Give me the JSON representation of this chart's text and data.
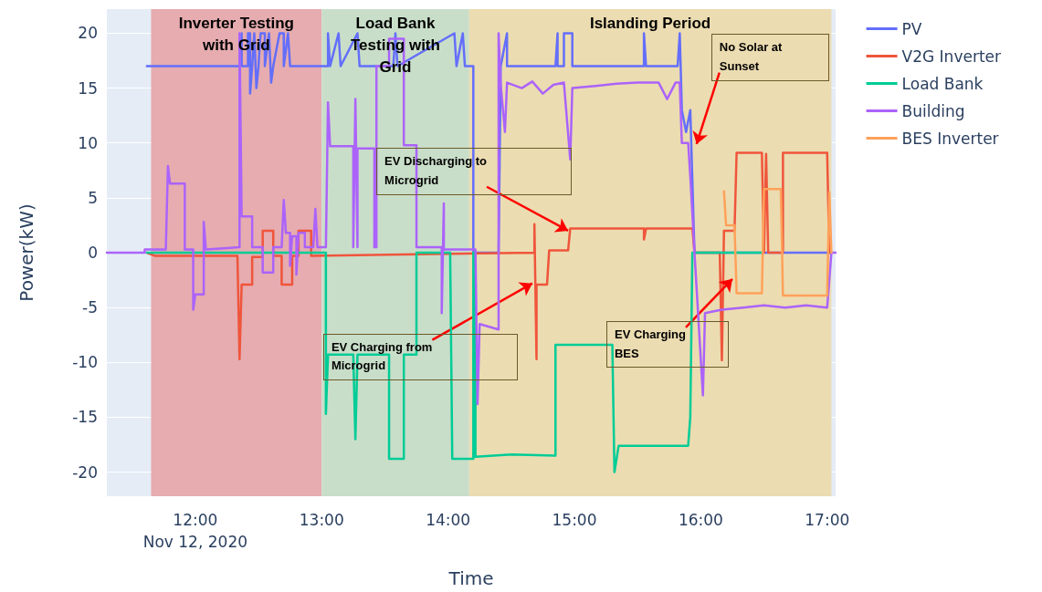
{
  "chart_data": {
    "type": "line",
    "xlabel": "Time",
    "ylabel": "Power(kW)",
    "xlim": [
      "2020-11-12T11:18",
      "2020-11-12T17:04"
    ],
    "ylim": [
      -22.2,
      22.2
    ],
    "xticks": [
      {
        "value": "2020-11-12T12:00",
        "label": "12:00\nNov 12, 2020"
      },
      {
        "value": "2020-11-12T13:00",
        "label": "13:00"
      },
      {
        "value": "2020-11-12T14:00",
        "label": "14:00"
      },
      {
        "value": "2020-11-12T15:00",
        "label": "15:00"
      },
      {
        "value": "2020-11-12T16:00",
        "label": "16:00"
      },
      {
        "value": "2020-11-12T17:00",
        "label": "17:00"
      }
    ],
    "yticks": [
      -20,
      -15,
      -10,
      -5,
      0,
      5,
      10,
      15,
      20
    ],
    "grid": true,
    "legend": "top right",
    "marker": "none",
    "line_style": "solid",
    "series": [
      {
        "name": "PV",
        "color": "#636efa",
        "x": [
          "2020-11-12T11:37",
          "2020-11-12T12:21",
          "2020-11-12T12:22",
          "2020-11-12T12:22",
          "2020-11-12T12:25",
          "2020-11-12T12:25",
          "2020-11-12T12:26",
          "2020-11-12T12:26",
          "2020-11-12T12:27",
          "2020-11-12T12:28",
          "2020-11-12T12:29",
          "2020-11-12T12:30",
          "2020-11-12T12:31",
          "2020-11-12T12:33",
          "2020-11-12T12:33",
          "2020-11-12T12:35",
          "2020-11-12T12:36",
          "2020-11-12T12:37",
          "2020-11-12T12:40",
          "2020-11-12T12:42",
          "2020-11-12T12:42",
          "2020-11-12T12:44",
          "2020-11-12T12:45",
          "2020-11-12T13:03",
          "2020-11-12T13:03",
          "2020-11-12T13:04",
          "2020-11-12T13:08",
          "2020-11-12T13:09",
          "2020-11-12T13:17",
          "2020-11-12T13:18",
          "2020-11-12T13:34",
          "2020-11-12T13:35",
          "2020-11-12T13:36",
          "2020-11-12T14:03",
          "2020-11-12T14:04",
          "2020-11-12T14:07",
          "2020-11-12T14:08",
          "2020-11-12T14:12",
          "2020-11-12T14:12",
          "2020-11-12T14:24",
          "2020-11-12T14:25",
          "2020-11-12T14:28",
          "2020-11-12T14:28",
          "2020-11-12T14:51",
          "2020-11-12T14:52",
          "2020-11-12T14:52",
          "2020-11-12T14:55",
          "2020-11-12T14:55",
          "2020-11-12T14:59",
          "2020-11-12T14:59",
          "2020-11-12T15:33",
          "2020-11-12T15:33",
          "2020-11-12T15:34",
          "2020-11-12T15:49",
          "2020-11-12T15:50",
          "2020-11-12T15:51",
          "2020-11-12T15:53",
          "2020-11-12T15:55",
          "2020-11-12T15:57",
          "2020-11-12T17:02"
        ],
        "values": [
          17,
          17,
          20,
          17,
          17,
          20,
          20,
          14.5,
          17,
          20,
          15,
          17,
          20,
          20,
          17,
          20,
          15.5,
          17,
          20,
          20,
          17,
          20,
          17,
          17,
          20,
          17,
          20,
          17,
          20,
          17,
          17,
          20,
          17,
          20,
          17,
          20,
          17,
          17,
          0,
          0,
          17,
          20,
          17,
          17,
          20,
          17,
          17,
          20,
          20,
          17,
          17,
          20,
          17,
          17,
          20,
          13,
          11,
          13,
          0,
          0
        ]
      },
      {
        "name": "V2G Inverter",
        "color": "#ef553b",
        "x": [
          "2020-11-12T11:37",
          "2020-11-12T11:41",
          "2020-11-12T12:20",
          "2020-11-12T12:21",
          "2020-11-12T12:22",
          "2020-11-12T12:27",
          "2020-11-12T12:27",
          "2020-11-12T12:32",
          "2020-11-12T12:32",
          "2020-11-12T12:37",
          "2020-11-12T12:37",
          "2020-11-12T12:41",
          "2020-11-12T12:41",
          "2020-11-12T12:46",
          "2020-11-12T12:46",
          "2020-11-12T12:49",
          "2020-11-12T12:49",
          "2020-11-12T12:55",
          "2020-11-12T12:55",
          "2020-11-12T14:00",
          "2020-11-12T14:41",
          "2020-11-12T14:41",
          "2020-11-12T14:42",
          "2020-11-12T14:42",
          "2020-11-12T14:47",
          "2020-11-12T14:48",
          "2020-11-12T14:57",
          "2020-11-12T14:58",
          "2020-11-12T15:33",
          "2020-11-12T15:33",
          "2020-11-12T15:34",
          "2020-11-12T15:56",
          "2020-11-12T15:57",
          "2020-11-12T16:09",
          "2020-11-12T16:10",
          "2020-11-12T16:11",
          "2020-11-12T16:16",
          "2020-11-12T16:17",
          "2020-11-12T16:29",
          "2020-11-12T16:30",
          "2020-11-12T16:31",
          "2020-11-12T16:32",
          "2020-11-12T16:39",
          "2020-11-12T16:39",
          "2020-11-12T17:00",
          "2020-11-12T17:01",
          "2020-11-12T17:02"
        ],
        "values": [
          0,
          -0.3,
          -0.3,
          -9.7,
          -2.9,
          -2.9,
          -0.4,
          -0.4,
          2,
          2,
          -0.3,
          -0.3,
          -2.9,
          -2.9,
          -0.3,
          -0.3,
          2,
          2,
          -0.3,
          -0.1,
          0,
          2.6,
          -9.7,
          -2.9,
          -2.9,
          0.2,
          0.2,
          2.2,
          2.2,
          1.2,
          2.2,
          2.2,
          0,
          0,
          -9.8,
          2,
          2,
          9.1,
          9.1,
          0,
          9,
          0,
          0,
          9.1,
          9.1,
          0,
          0
        ]
      },
      {
        "name": "Load Bank",
        "color": "#00cc96",
        "x": [
          "2020-11-12T11:37",
          "2020-11-12T13:02",
          "2020-11-12T13:02",
          "2020-11-12T13:03",
          "2020-11-12T13:15",
          "2020-11-12T13:16",
          "2020-11-12T13:17",
          "2020-11-12T13:32",
          "2020-11-12T13:32",
          "2020-11-12T13:39",
          "2020-11-12T13:39",
          "2020-11-12T13:45",
          "2020-11-12T13:45",
          "2020-11-12T14:01",
          "2020-11-12T14:02",
          "2020-11-12T14:12",
          "2020-11-12T14:12",
          "2020-11-12T14:13",
          "2020-11-12T14:13",
          "2020-11-12T14:30",
          "2020-11-12T14:51",
          "2020-11-12T14:51",
          "2020-11-12T15:18",
          "2020-11-12T15:19",
          "2020-11-12T15:21",
          "2020-11-12T15:54",
          "2020-11-12T15:55",
          "2020-11-12T15:56",
          "2020-11-12T16:29"
        ],
        "values": [
          0,
          0,
          -14.7,
          -9.3,
          -9.3,
          -17,
          -9.3,
          -9.3,
          -18.8,
          -18.8,
          -9.3,
          -9.3,
          0,
          0,
          -18.8,
          -18.8,
          0,
          0,
          -18.6,
          -18.4,
          -18.5,
          -8.4,
          -8.4,
          -20,
          -17.6,
          -17.6,
          -15,
          0,
          0
        ]
      },
      {
        "name": "Building",
        "color": "#ab63fa",
        "x": [
          "2020-11-12T11:18",
          "2020-11-12T11:36",
          "2020-11-12T11:36",
          "2020-11-12T11:46",
          "2020-11-12T11:47",
          "2020-11-12T11:48",
          "2020-11-12T11:55",
          "2020-11-12T11:55",
          "2020-11-12T11:59",
          "2020-11-12T11:59",
          "2020-11-12T12:00",
          "2020-11-12T12:04",
          "2020-11-12T12:04",
          "2020-11-12T12:05",
          "2020-11-12T12:21",
          "2020-11-12T12:21",
          "2020-11-12T12:22",
          "2020-11-12T12:27",
          "2020-11-12T12:27",
          "2020-11-12T12:32",
          "2020-11-12T12:32",
          "2020-11-12T12:37",
          "2020-11-12T12:37",
          "2020-11-12T12:41",
          "2020-11-12T12:42",
          "2020-11-12T12:43",
          "2020-11-12T12:45",
          "2020-11-12T12:45",
          "2020-11-12T12:46",
          "2020-11-12T12:48",
          "2020-11-12T12:48",
          "2020-11-12T12:49",
          "2020-11-12T12:52",
          "2020-11-12T12:52",
          "2020-11-12T12:56",
          "2020-11-12T12:57",
          "2020-11-12T12:58",
          "2020-11-12T13:02",
          "2020-11-12T13:03",
          "2020-11-12T13:04",
          "2020-11-12T13:15",
          "2020-11-12T13:15",
          "2020-11-12T13:16",
          "2020-11-12T13:17",
          "2020-11-12T13:17",
          "2020-11-12T13:25",
          "2020-11-12T13:25",
          "2020-11-12T13:26",
          "2020-11-12T13:26",
          "2020-11-12T13:32",
          "2020-11-12T13:32",
          "2020-11-12T13:39",
          "2020-11-12T13:39",
          "2020-11-12T13:45",
          "2020-11-12T13:45",
          "2020-11-12T13:57",
          "2020-11-12T13:57",
          "2020-11-12T13:58",
          "2020-11-12T13:58",
          "2020-11-12T14:13",
          "2020-11-12T14:14",
          "2020-11-12T14:15",
          "2020-11-12T14:24",
          "2020-11-12T14:24",
          "2020-11-12T14:25",
          "2020-11-12T14:27",
          "2020-11-12T14:28",
          "2020-11-12T14:35",
          "2020-11-12T14:40",
          "2020-11-12T14:45",
          "2020-11-12T14:50",
          "2020-11-12T14:55",
          "2020-11-12T14:58",
          "2020-11-12T14:59",
          "2020-11-12T15:10",
          "2020-11-12T15:20",
          "2020-11-12T15:30",
          "2020-11-12T15:40",
          "2020-11-12T15:44",
          "2020-11-12T15:48",
          "2020-11-12T15:50",
          "2020-11-12T15:51",
          "2020-11-12T15:54",
          "2020-11-12T15:55",
          "2020-11-12T15:57",
          "2020-11-12T16:01",
          "2020-11-12T16:02",
          "2020-11-12T16:10",
          "2020-11-12T16:20",
          "2020-11-12T16:30",
          "2020-11-12T16:40",
          "2020-11-12T16:50",
          "2020-11-12T17:00",
          "2020-11-12T17:02",
          "2020-11-12T17:04"
        ],
        "values": [
          0,
          0,
          0.3,
          0.3,
          7.9,
          6.3,
          6.3,
          0.3,
          0.3,
          -5.2,
          -3.8,
          -3.8,
          2.8,
          0.3,
          0.5,
          20,
          3.3,
          3.3,
          0.5,
          0.5,
          -1.8,
          -1.8,
          0.5,
          0.5,
          4.8,
          1.8,
          1.8,
          -1.2,
          1.5,
          1.5,
          -2,
          1.8,
          1.8,
          0.5,
          0.5,
          4,
          0.5,
          0.5,
          13.7,
          9.7,
          9.7,
          0.5,
          14,
          0.5,
          9.5,
          9.5,
          0.5,
          0.5,
          17,
          17,
          19.5,
          19.5,
          9.8,
          9.8,
          0.5,
          0.5,
          -5.5,
          4.5,
          0.3,
          0.3,
          -13.8,
          -6.5,
          -7,
          20,
          15.3,
          11,
          15.5,
          15,
          15.6,
          14.5,
          15.3,
          15.5,
          8.5,
          15,
          15.2,
          15.4,
          15.5,
          15.5,
          14,
          15.5,
          15.5,
          10,
          10,
          7,
          0,
          -13,
          -5.5,
          -5.2,
          -5,
          -4.8,
          -5,
          -4.8,
          -5,
          0,
          0
        ]
      },
      {
        "name": "BES Inverter",
        "color": "#ffa15a",
        "x": [
          "2020-11-12T16:11",
          "2020-11-12T16:12",
          "2020-11-12T16:16",
          "2020-11-12T16:17",
          "2020-11-12T16:29",
          "2020-11-12T16:30",
          "2020-11-12T16:38",
          "2020-11-12T16:39",
          "2020-11-12T17:00",
          "2020-11-12T17:01",
          "2020-11-12T17:02"
        ],
        "values": [
          5.6,
          2.5,
          2.5,
          -3.7,
          -3.7,
          5.8,
          5.8,
          -3.9,
          -3.9,
          5.5,
          0
        ]
      }
    ],
    "bands": [
      {
        "axis": "x",
        "from": "2020-11-12T11:39",
        "to": "2020-11-12T13:00",
        "label": "Inverter Testing with Grid",
        "color": "#e6acb0"
      },
      {
        "axis": "x",
        "from": "2020-11-12T13:00",
        "to": "2020-11-12T14:10",
        "label": "Load Bank Testing with Grid",
        "color": "#c9dec9"
      },
      {
        "axis": "x",
        "from": "2020-11-12T14:10",
        "to": "2020-11-12T17:02",
        "label": "Islanding Period",
        "color": "#ecdcb1"
      }
    ],
    "annotations": [
      {
        "text": "EV Discharging to Microgrid",
        "x": "2020-11-12T14:57",
        "y": 2
      },
      {
        "text": "EV Charging from Microgrid",
        "x": "2020-11-12T14:40",
        "y": -2.8
      },
      {
        "text": "EV Charging BES",
        "x": "2020-11-12T16:15",
        "y": -2.4
      },
      {
        "text": "No Solar at Sunset",
        "x": "2020-11-12T15:58",
        "y": 9.9
      }
    ]
  }
}
